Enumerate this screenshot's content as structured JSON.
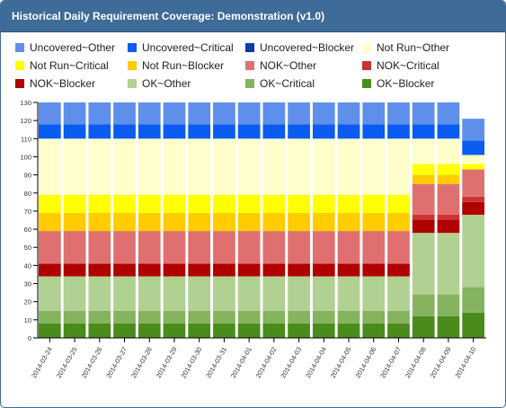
{
  "panel": {
    "title": "Historical Daily Requirement Coverage: Demonstration (v1.0)"
  },
  "chart_data": {
    "type": "bar",
    "stacked": true,
    "title": "Historical Daily Requirement Coverage: Demonstration (v1.0)",
    "ylim": [
      0,
      130
    ],
    "yticks": [
      0,
      10,
      20,
      30,
      40,
      50,
      60,
      70,
      80,
      90,
      100,
      110,
      120,
      130
    ],
    "grid": false,
    "legend_position": "top",
    "categories": [
      "2014-03-24",
      "2014-03-25",
      "2014-03-26",
      "2014-03-27",
      "2014-03-28",
      "2014-03-29",
      "2014-03-30",
      "2014-03-31",
      "2014-04-01",
      "2014-04-02",
      "2014-04-03",
      "2014-04-04",
      "2014-04-05",
      "2014-04-06",
      "2014-04-07",
      "2014-04-08",
      "2014-04-09",
      "2014-04-10"
    ],
    "series": [
      {
        "name": "OK~Blocker",
        "color": "#4a8c1c",
        "values": [
          8,
          8,
          8,
          8,
          8,
          8,
          8,
          8,
          8,
          8,
          8,
          8,
          8,
          8,
          8,
          12,
          12,
          14
        ]
      },
      {
        "name": "OK~Critical",
        "color": "#85b35e",
        "values": [
          7,
          7,
          7,
          7,
          7,
          7,
          7,
          7,
          7,
          7,
          7,
          7,
          7,
          7,
          7,
          12,
          12,
          14
        ]
      },
      {
        "name": "OK~Other",
        "color": "#b1d192",
        "values": [
          19,
          19,
          19,
          19,
          19,
          19,
          19,
          19,
          19,
          19,
          19,
          19,
          19,
          19,
          19,
          34,
          34,
          40
        ]
      },
      {
        "name": "NOK~Blocker",
        "color": "#b00000",
        "values": [
          7,
          7,
          7,
          7,
          7,
          7,
          7,
          7,
          7,
          7,
          7,
          7,
          7,
          7,
          7,
          7,
          7,
          7
        ]
      },
      {
        "name": "NOK~Critical",
        "color": "#cc3333",
        "values": [
          0,
          0,
          0,
          0,
          0,
          0,
          0,
          0,
          0,
          0,
          0,
          0,
          0,
          0,
          0,
          3,
          3,
          3
        ]
      },
      {
        "name": "NOK~Other",
        "color": "#e07070",
        "values": [
          18,
          18,
          18,
          18,
          18,
          18,
          18,
          18,
          18,
          18,
          18,
          18,
          18,
          18,
          18,
          17,
          17,
          15
        ]
      },
      {
        "name": "Not Run~Blocker",
        "color": "#ffcc00",
        "values": [
          10,
          10,
          10,
          10,
          10,
          10,
          10,
          10,
          10,
          10,
          10,
          10,
          10,
          10,
          10,
          5,
          5,
          0
        ]
      },
      {
        "name": "Not Run~Critical",
        "color": "#ffff00",
        "values": [
          10,
          10,
          10,
          10,
          10,
          10,
          10,
          10,
          10,
          10,
          10,
          10,
          10,
          10,
          10,
          6,
          6,
          3
        ]
      },
      {
        "name": "Not Run~Other",
        "color": "#ffffcc",
        "values": [
          31,
          31,
          31,
          31,
          31,
          31,
          31,
          31,
          31,
          31,
          31,
          31,
          31,
          31,
          31,
          14,
          14,
          5
        ]
      },
      {
        "name": "Uncovered~Blocker",
        "color": "#0a3da8",
        "values": [
          0,
          0,
          0,
          0,
          0,
          0,
          0,
          0,
          0,
          0,
          0,
          0,
          0,
          0,
          0,
          0,
          0,
          0
        ]
      },
      {
        "name": "Uncovered~Critical",
        "color": "#0b5cf0",
        "values": [
          8,
          8,
          8,
          8,
          8,
          8,
          8,
          8,
          8,
          8,
          8,
          8,
          8,
          8,
          8,
          8,
          8,
          8
        ]
      },
      {
        "name": "Uncovered~Other",
        "color": "#5f8fea",
        "values": [
          12,
          12,
          12,
          12,
          12,
          12,
          12,
          12,
          12,
          12,
          12,
          12,
          12,
          12,
          12,
          12,
          12,
          12
        ]
      }
    ],
    "legend": [
      {
        "name": "Uncovered~Other",
        "color": "#5f8fea"
      },
      {
        "name": "Uncovered~Critical",
        "color": "#0b5cf0"
      },
      {
        "name": "Uncovered~Blocker",
        "color": "#0a3da8"
      },
      {
        "name": "Not Run~Other",
        "color": "#ffffcc"
      },
      {
        "name": "Not Run~Critical",
        "color": "#ffff00"
      },
      {
        "name": "Not Run~Blocker",
        "color": "#ffcc00"
      },
      {
        "name": "NOK~Other",
        "color": "#e07070"
      },
      {
        "name": "NOK~Critical",
        "color": "#cc3333"
      },
      {
        "name": "NOK~Blocker",
        "color": "#b00000"
      },
      {
        "name": "OK~Other",
        "color": "#b1d192"
      },
      {
        "name": "OK~Critical",
        "color": "#85b35e"
      },
      {
        "name": "OK~Blocker",
        "color": "#4a8c1c"
      }
    ]
  }
}
